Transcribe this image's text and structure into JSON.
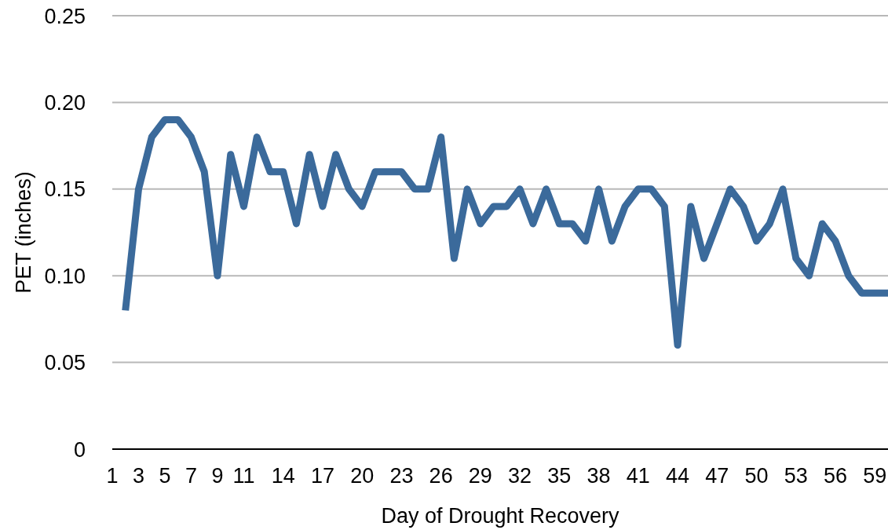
{
  "chart_data": {
    "type": "line",
    "xlabel": "Day of Drought Recovery",
    "ylabel": "PET (inches)",
    "x": [
      2,
      3,
      4,
      5,
      6,
      7,
      8,
      9,
      10,
      11,
      12,
      13,
      14,
      15,
      16,
      17,
      18,
      19,
      20,
      21,
      22,
      23,
      24,
      25,
      26,
      27,
      28,
      29,
      30,
      31,
      32,
      33,
      34,
      35,
      36,
      37,
      38,
      39,
      40,
      41,
      42,
      43,
      44,
      45,
      46,
      47,
      48,
      49,
      50,
      51,
      52,
      53,
      54,
      55,
      56,
      57,
      58,
      59,
      60
    ],
    "series": [
      {
        "color": "#3b6a9b",
        "values": [
          0.08,
          0.15,
          0.18,
          0.19,
          0.19,
          0.18,
          0.16,
          0.1,
          0.17,
          0.14,
          0.18,
          0.16,
          0.16,
          0.13,
          0.17,
          0.14,
          0.17,
          0.15,
          0.14,
          0.16,
          0.16,
          0.16,
          0.15,
          0.15,
          0.18,
          0.11,
          0.15,
          0.13,
          0.14,
          0.14,
          0.15,
          0.13,
          0.15,
          0.13,
          0.13,
          0.12,
          0.15,
          0.12,
          0.14,
          0.15,
          0.15,
          0.14,
          0.06,
          0.14,
          0.11,
          0.13,
          0.15,
          0.14,
          0.12,
          0.13,
          0.15,
          0.11,
          0.1,
          0.13,
          0.12,
          0.1,
          0.09,
          0.09,
          0.09
        ]
      }
    ],
    "xlim": [
      1,
      60
    ],
    "xticks": [
      1,
      3,
      5,
      7,
      9,
      11,
      14,
      17,
      20,
      23,
      26,
      29,
      32,
      35,
      38,
      41,
      44,
      47,
      50,
      53,
      56,
      59
    ],
    "ylim": [
      0,
      0.25
    ],
    "yticks": [
      0,
      0.05,
      {
        "value": 0.1,
        "label": "0.10"
      },
      0.15,
      {
        "value": 0.2,
        "label": "0.20"
      },
      0.25
    ],
    "grid": "y",
    "marker": "none",
    "line_style": "solid"
  }
}
